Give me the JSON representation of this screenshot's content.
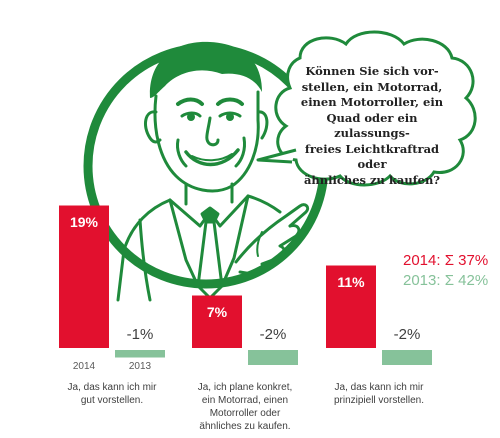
{
  "question": "Können Sie sich vor-\nstellen, ein Motorrad,\neinen Motorroller, ein\nQuad oder ein zulassungs-\nfreies Leichtkraftrad oder\nähnliches zu kaufen?",
  "summary": {
    "line_2014": "2014: Σ 37%",
    "line_2013": "2013: Σ 42%"
  },
  "colors": {
    "red": "#e2102e",
    "green": "#86c29a",
    "illustration": "#1f8a3b",
    "bubble_border": "#1f8a3b"
  },
  "icons": [
    "man-illustration-icon",
    "speech-bubble-icon"
  ],
  "chart_data": {
    "type": "bar",
    "categories": [
      "Ja, das kann ich mir\ngut vorstellen.",
      "Ja, ich plane konkret,\nein Motorrad, einen\nMotorroller oder\nähnliches zu kaufen.",
      "Ja, das kann ich mir\nprinzipiell vorstellen."
    ],
    "series": [
      {
        "name": "2014",
        "values": [
          19,
          7,
          11
        ],
        "labels": [
          "19%",
          "7%",
          "11%"
        ]
      },
      {
        "name": "2013",
        "values": [
          -1,
          -2,
          -2
        ],
        "labels": [
          "-1%",
          "-2%",
          "-2%"
        ]
      }
    ],
    "year_labels": [
      "2014",
      "2013"
    ],
    "ylim": [
      -2,
      20
    ],
    "title": "",
    "xlabel": "",
    "ylabel": ""
  }
}
